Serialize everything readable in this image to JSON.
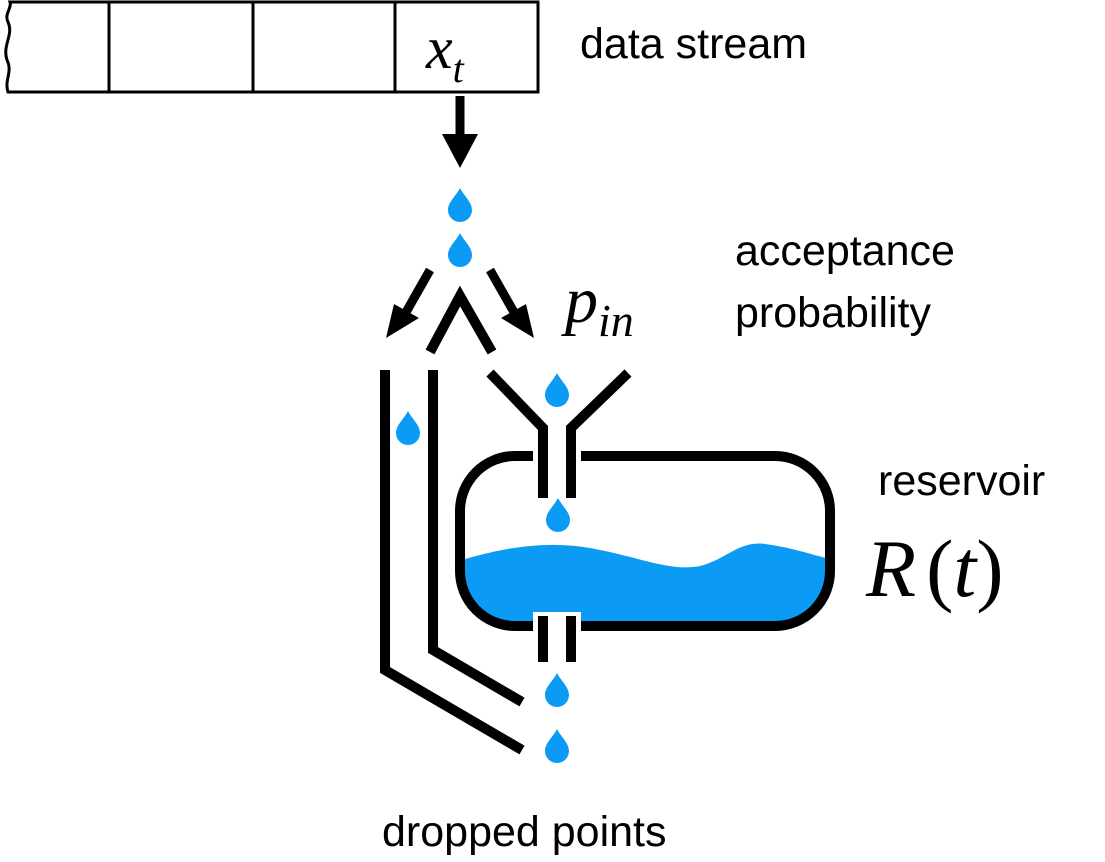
{
  "stream": {
    "cell_label": "x",
    "cell_label_sub": "t",
    "label": "data stream"
  },
  "acceptance": {
    "line1": "acceptance",
    "line2": "probability",
    "symbol": "p",
    "symbol_sub": "in"
  },
  "reservoir": {
    "label": "reservoir",
    "symbol": "R",
    "symbol_arg": "t"
  },
  "dropped": {
    "label": "dropped points"
  },
  "colors": {
    "water": "#0b9bf4",
    "line": "#000000"
  }
}
